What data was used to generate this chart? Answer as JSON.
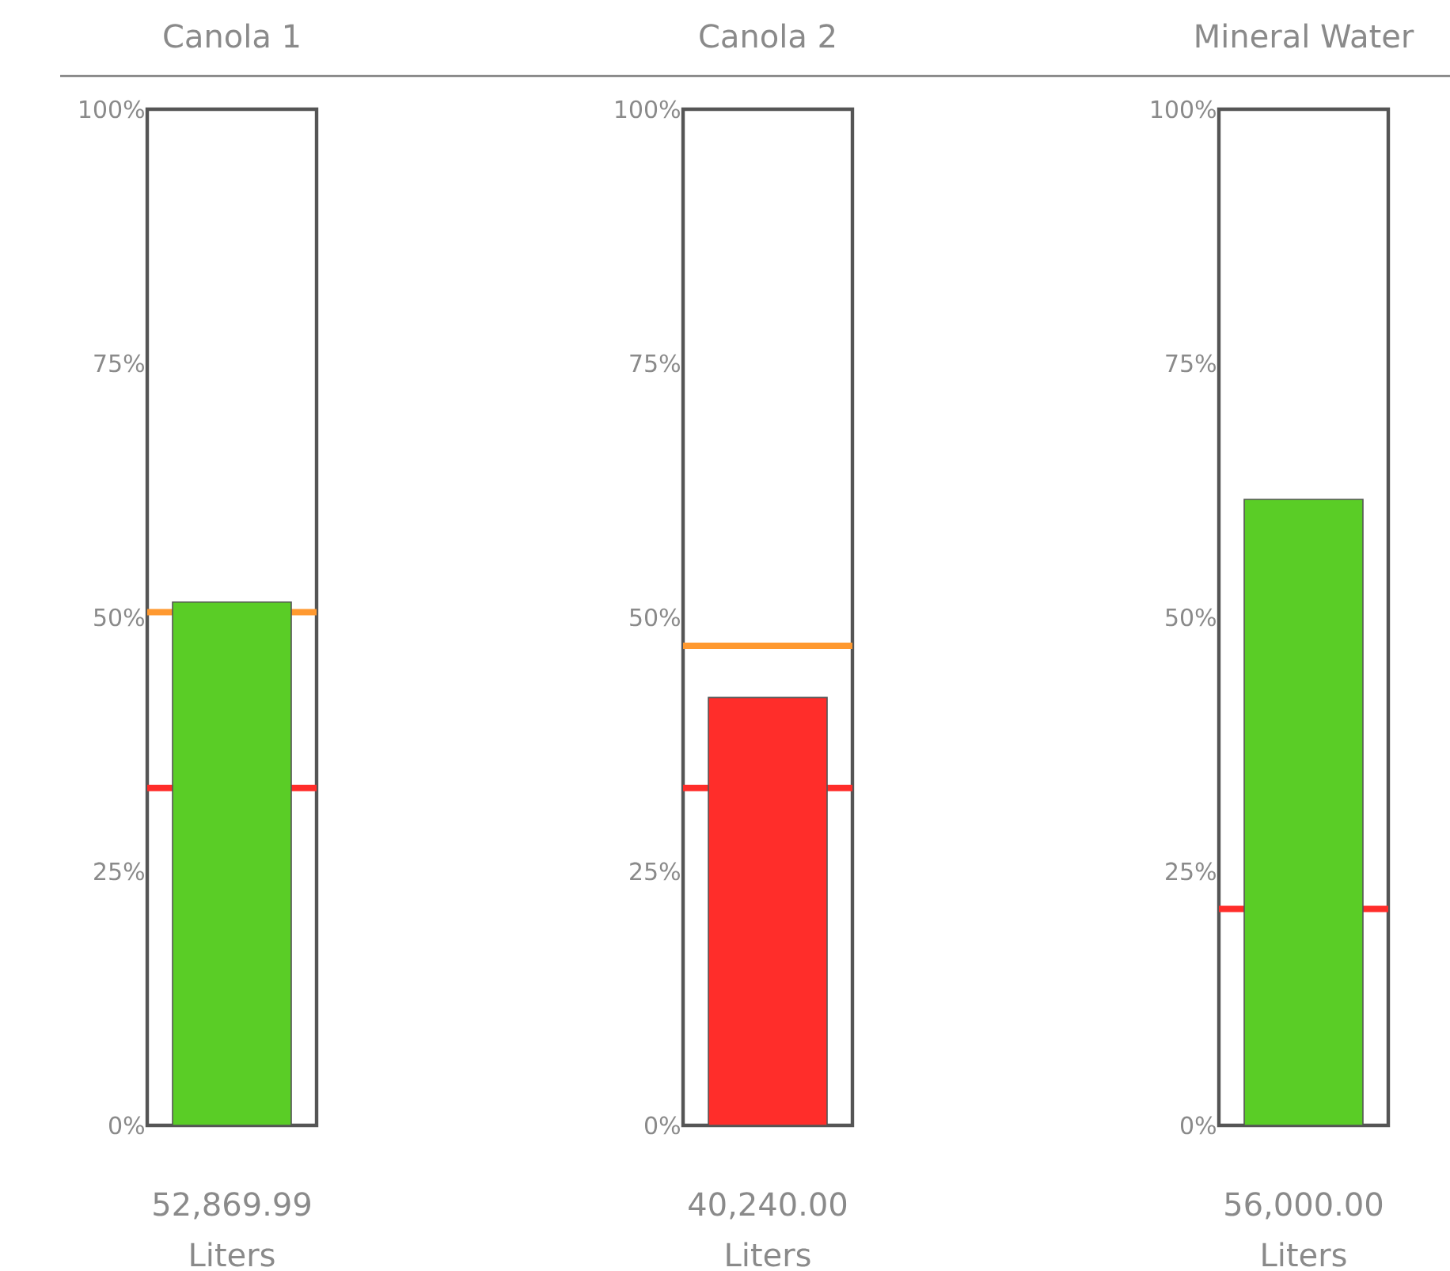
{
  "chart_data": [
    {
      "type": "bar",
      "title": "Canola 1",
      "categories": [
        null
      ],
      "values": [
        51.5
      ],
      "colors": [
        "#5acd26"
      ],
      "ylim": [
        0,
        100
      ],
      "yticks": [
        {
          "value": 0,
          "label": "0%"
        },
        {
          "value": 25,
          "label": "25%"
        },
        {
          "value": 50,
          "label": "50%"
        },
        {
          "value": 75,
          "label": "75%"
        },
        {
          "value": 100,
          "label": "100%"
        }
      ],
      "tick_labels": "y",
      "ref_lines": [
        {
          "axis": "y",
          "value": 50.5,
          "color": "#ff9930"
        },
        {
          "axis": "y",
          "value": 33.2,
          "color": "#ff2d2a"
        }
      ],
      "annotations": [
        "52,869.99",
        "Liters"
      ]
    },
    {
      "type": "bar",
      "title": "Canola 2",
      "categories": [
        null
      ],
      "values": [
        42.1
      ],
      "colors": [
        "#ff2d2a"
      ],
      "ylim": [
        0,
        100
      ],
      "yticks": [
        {
          "value": 0,
          "label": "0%"
        },
        {
          "value": 25,
          "label": "25%"
        },
        {
          "value": 50,
          "label": "50%"
        },
        {
          "value": 75,
          "label": "75%"
        },
        {
          "value": 100,
          "label": "100%"
        }
      ],
      "tick_labels": "y",
      "ref_lines": [
        {
          "axis": "y",
          "value": 47.2,
          "color": "#ff9930"
        },
        {
          "axis": "y",
          "value": 33.2,
          "color": "#ff2d2a"
        }
      ],
      "annotations": [
        "40,240.00",
        "Liters"
      ]
    },
    {
      "type": "bar",
      "title": "Mineral Water",
      "categories": [
        null
      ],
      "values": [
        61.6
      ],
      "colors": [
        "#5acd26"
      ],
      "ylim": [
        0,
        100
      ],
      "yticks": [
        {
          "value": 0,
          "label": "0%"
        },
        {
          "value": 25,
          "label": "25%"
        },
        {
          "value": 50,
          "label": "50%"
        },
        {
          "value": 75,
          "label": "75%"
        },
        {
          "value": 100,
          "label": "100%"
        }
      ],
      "tick_labels": "y",
      "ref_lines": [
        {
          "axis": "y",
          "value": 21.3,
          "color": "#ff2d2a"
        }
      ],
      "annotations": [
        "56,000.00",
        "Liters"
      ]
    }
  ]
}
